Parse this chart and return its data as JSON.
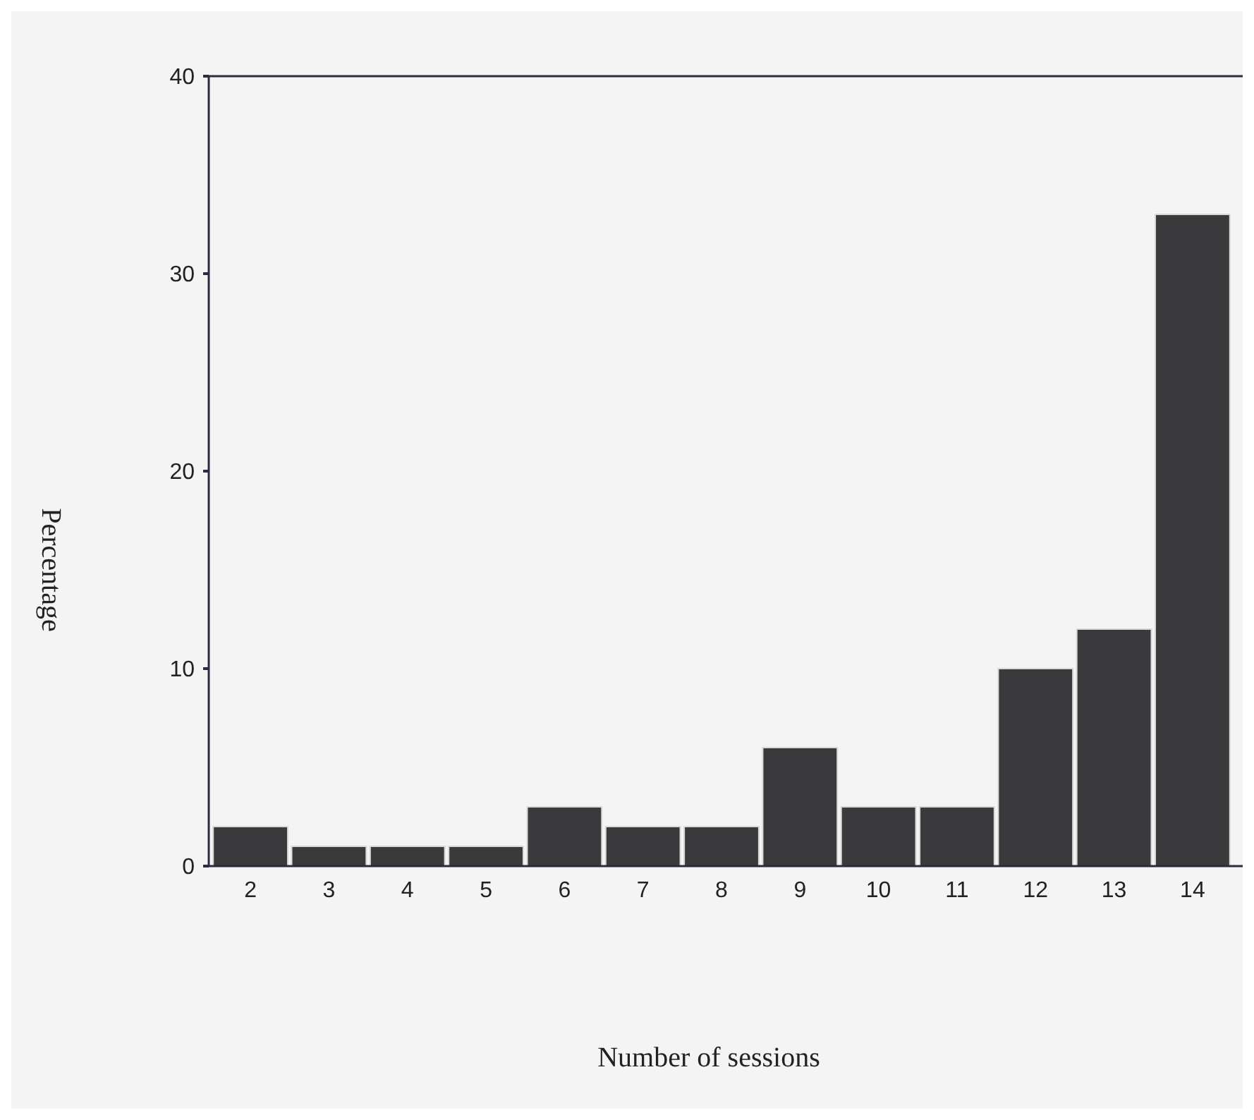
{
  "chart_data": {
    "type": "bar",
    "xlabel": "Number of sessions",
    "ylabel": "Percentage",
    "categories": [
      "2",
      "3",
      "4",
      "5",
      "6",
      "7",
      "8",
      "9",
      "10",
      "11",
      "12",
      "13",
      "14"
    ],
    "values": [
      2,
      1,
      1,
      1,
      3,
      2,
      2,
      6,
      3,
      3,
      10,
      12,
      33
    ],
    "color": "#3a3a3c",
    "ylim": [
      0,
      40
    ],
    "yticks": [
      0,
      10,
      20,
      30,
      40
    ],
    "grid": false
  }
}
